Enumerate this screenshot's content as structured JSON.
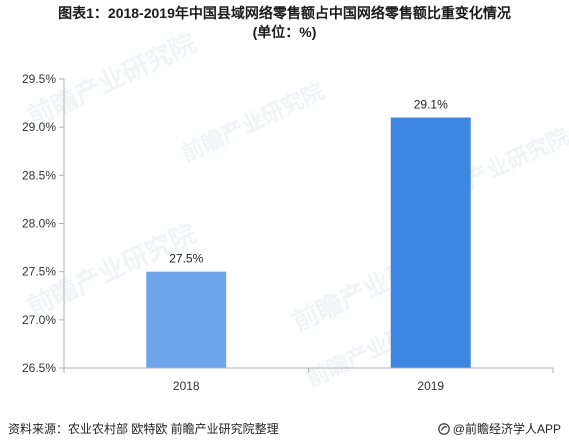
{
  "title_line1": "图表1：2018-2019年中国县域网络零售额占中国网络零售额比重变化情况",
  "title_line2": "(单位：%)",
  "source": "资料来源：农业农村部 欧特欧 前瞻产业研究院整理",
  "credit": "@前瞻经济学人APP",
  "logo_icon": "qianzhan-logo-icon",
  "watermark": "前瞻产业研究院",
  "colors": {
    "bar_2018": "#6ea4ea",
    "bar_2019": "#3e86df"
  },
  "chart_data": {
    "type": "bar",
    "categories": [
      "2018",
      "2019"
    ],
    "values": [
      27.5,
      29.1
    ],
    "value_labels": [
      "27.5%",
      "29.1%"
    ],
    "ylim": [
      26.5,
      29.5
    ],
    "yticks": [
      26.5,
      27.0,
      27.5,
      28.0,
      28.5,
      29.0,
      29.5
    ],
    "ytick_labels": [
      "26.5%",
      "27.0%",
      "27.5%",
      "28.0%",
      "28.5%",
      "29.0%",
      "29.5%"
    ],
    "grid": false,
    "legend": "none"
  }
}
